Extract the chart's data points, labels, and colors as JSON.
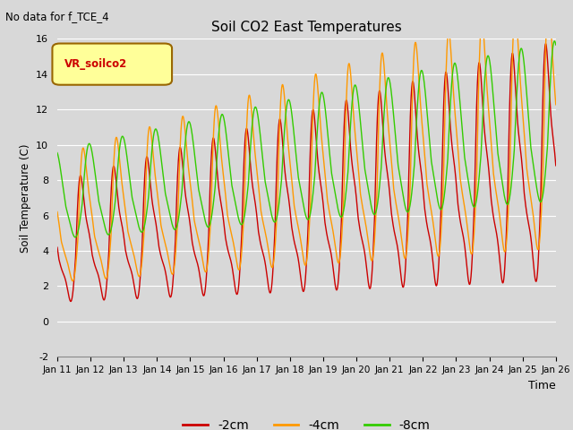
{
  "title": "Soil CO2 East Temperatures",
  "subtitle": "No data for f_TCE_4",
  "ylabel": "Soil Temperature (C)",
  "xlabel": "Time",
  "box_label": "VR_soilco2",
  "ylim": [
    -2,
    16
  ],
  "yticks": [
    -2,
    0,
    2,
    4,
    6,
    8,
    10,
    12,
    14,
    16
  ],
  "xtick_labels": [
    "Jan 11",
    "Jan 12",
    "Jan 13",
    "Jan 14",
    "Jan 15",
    "Jan 16",
    "Jan 17",
    "Jan 18",
    "Jan 19",
    "Jan 20",
    "Jan 21",
    "Jan 22",
    "Jan 23",
    "Jan 24",
    "Jan 25",
    "Jan 26"
  ],
  "colors": {
    "line_2cm": "#cc0000",
    "line_4cm": "#ff9900",
    "line_8cm": "#33cc00",
    "background": "#d8d8d8",
    "box_fill": "#ffff99",
    "box_edge": "#996600"
  },
  "n_days": 15,
  "points_per_day": 120
}
